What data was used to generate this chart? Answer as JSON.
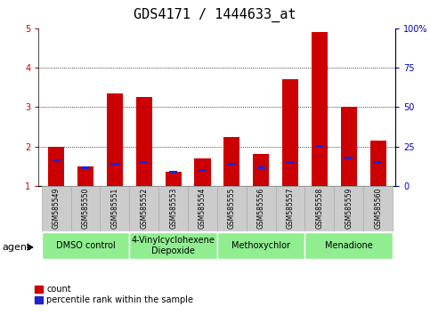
{
  "title": "GDS4171 / 1444633_at",
  "samples": [
    "GSM585549",
    "GSM585550",
    "GSM585551",
    "GSM585552",
    "GSM585553",
    "GSM585554",
    "GSM585555",
    "GSM585556",
    "GSM585557",
    "GSM585558",
    "GSM585559",
    "GSM585560"
  ],
  "red_values": [
    2.0,
    1.5,
    3.35,
    3.25,
    1.35,
    1.7,
    2.25,
    1.8,
    3.7,
    4.9,
    3.0,
    2.15
  ],
  "blue_values": [
    1.65,
    1.45,
    1.55,
    1.6,
    1.35,
    1.4,
    1.55,
    1.45,
    1.6,
    2.0,
    1.7,
    1.6
  ],
  "bar_bottom": 1.0,
  "red_color": "#CC0000",
  "blue_color": "#2222CC",
  "ylim_left": [
    1,
    5
  ],
  "ylim_right": [
    0,
    100
  ],
  "yticks_left": [
    1,
    2,
    3,
    4,
    5
  ],
  "yticks_right": [
    0,
    25,
    50,
    75,
    100
  ],
  "ytick_labels_right": [
    "0",
    "25",
    "50",
    "75",
    "100%"
  ],
  "bar_width": 0.55,
  "blue_bar_width": 0.28,
  "blue_bar_height": 0.07,
  "groups": [
    {
      "label": "DMSO control",
      "start": 0,
      "end": 2,
      "color": "#90EE90"
    },
    {
      "label": "4-Vinylcyclohexene\nDiepoxide",
      "start": 3,
      "end": 5,
      "color": "#90EE90"
    },
    {
      "label": "Methoxychlor",
      "start": 6,
      "end": 8,
      "color": "#90EE90"
    },
    {
      "label": "Menadione",
      "start": 9,
      "end": 11,
      "color": "#90EE90"
    }
  ],
  "legend_items": [
    {
      "label": "count",
      "color": "#CC0000"
    },
    {
      "label": "percentile rank within the sample",
      "color": "#2222CC"
    }
  ],
  "agent_label": "agent",
  "bg_plot": "#FFFFFF",
  "bg_fig": "#FFFFFF",
  "grid_color": "black",
  "tick_color_left": "#CC0000",
  "tick_color_right": "#0000BB",
  "title_fontsize": 11,
  "tick_fontsize": 7,
  "sample_fontsize": 5.5,
  "group_fontsize": 7,
  "legend_fontsize": 7
}
